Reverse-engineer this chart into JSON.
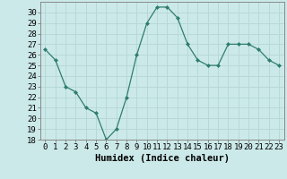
{
  "xlabel": "Humidex (Indice chaleur)",
  "x": [
    0,
    1,
    2,
    3,
    4,
    5,
    6,
    7,
    8,
    9,
    10,
    11,
    12,
    13,
    14,
    15,
    16,
    17,
    18,
    19,
    20,
    21,
    22,
    23
  ],
  "y": [
    26.5,
    25.5,
    23.0,
    22.5,
    21.0,
    20.5,
    18.0,
    19.0,
    22.0,
    26.0,
    29.0,
    30.5,
    30.5,
    29.5,
    27.0,
    25.5,
    25.0,
    25.0,
    27.0,
    27.0,
    27.0,
    26.5,
    25.5,
    25.0
  ],
  "ylim": [
    18,
    31
  ],
  "yticks": [
    18,
    19,
    20,
    21,
    22,
    23,
    24,
    25,
    26,
    27,
    28,
    29,
    30
  ],
  "line_color": "#2e7d6e",
  "marker": "D",
  "marker_size": 2.0,
  "bg_color": "#cce9e9",
  "grid_color": "#b8d8d8",
  "axis_label_fontsize": 7.5,
  "tick_fontsize": 6.5
}
